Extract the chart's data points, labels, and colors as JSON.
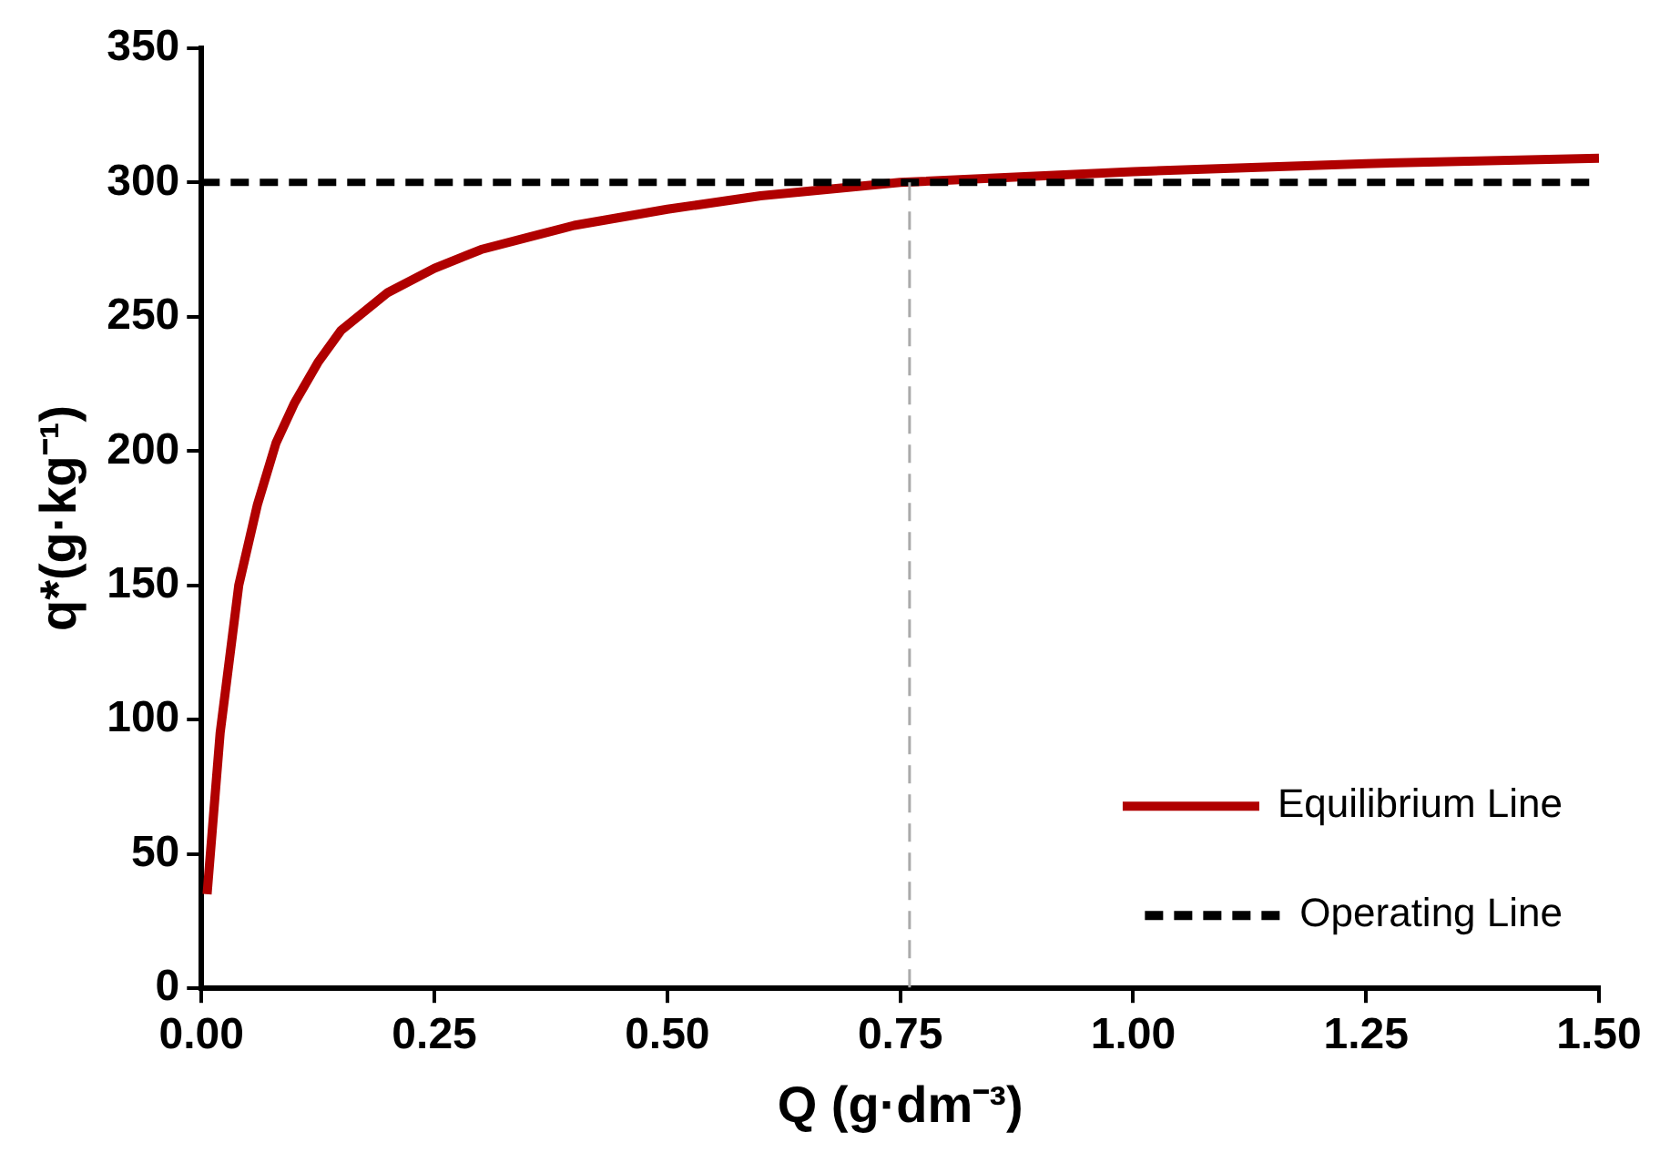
{
  "chart_data": {
    "type": "line",
    "xlabel": "Q (g·dm⁻³)",
    "ylabel": "q*(g·kg⁻¹)",
    "xlim": [
      0,
      1.5
    ],
    "ylim": [
      0,
      350
    ],
    "xticks": [
      {
        "value": 0,
        "label": "0.00"
      },
      {
        "value": 0.25,
        "label": "0.25"
      },
      {
        "value": 0.5,
        "label": "0.50"
      },
      {
        "value": 0.75,
        "label": "0.75"
      },
      {
        "value": 1,
        "label": "1.00"
      },
      {
        "value": 1.25,
        "label": "1.25"
      },
      {
        "value": 1.5,
        "label": "1.50"
      }
    ],
    "yticks": [
      0,
      50,
      100,
      150,
      200,
      250,
      300,
      350
    ],
    "grid": false,
    "legend": "bottom right",
    "marker": "none",
    "series": [
      {
        "name": "Equilibrium Line",
        "color": "#b00000",
        "line_style": "solid",
        "x": [
          0.006,
          0.02,
          0.04,
          0.06,
          0.08,
          0.1,
          0.125,
          0.15,
          0.2,
          0.25,
          0.3,
          0.4,
          0.5,
          0.6,
          0.75,
          1.0,
          1.25,
          1.5
        ],
        "values": [
          35,
          95,
          150,
          180,
          203,
          218,
          233,
          245,
          259,
          268,
          275,
          284,
          290,
          295,
          300,
          304,
          307,
          309
        ]
      },
      {
        "name": "Operating Line",
        "color": "#000000",
        "line_style": "dashed",
        "x": [
          0,
          1.5
        ],
        "values": [
          300,
          300
        ]
      },
      {
        "color": "#aaaaaa",
        "line_style": "dashed",
        "x": [
          0.76,
          0.76
        ],
        "values": [
          300,
          0
        ]
      }
    ]
  }
}
